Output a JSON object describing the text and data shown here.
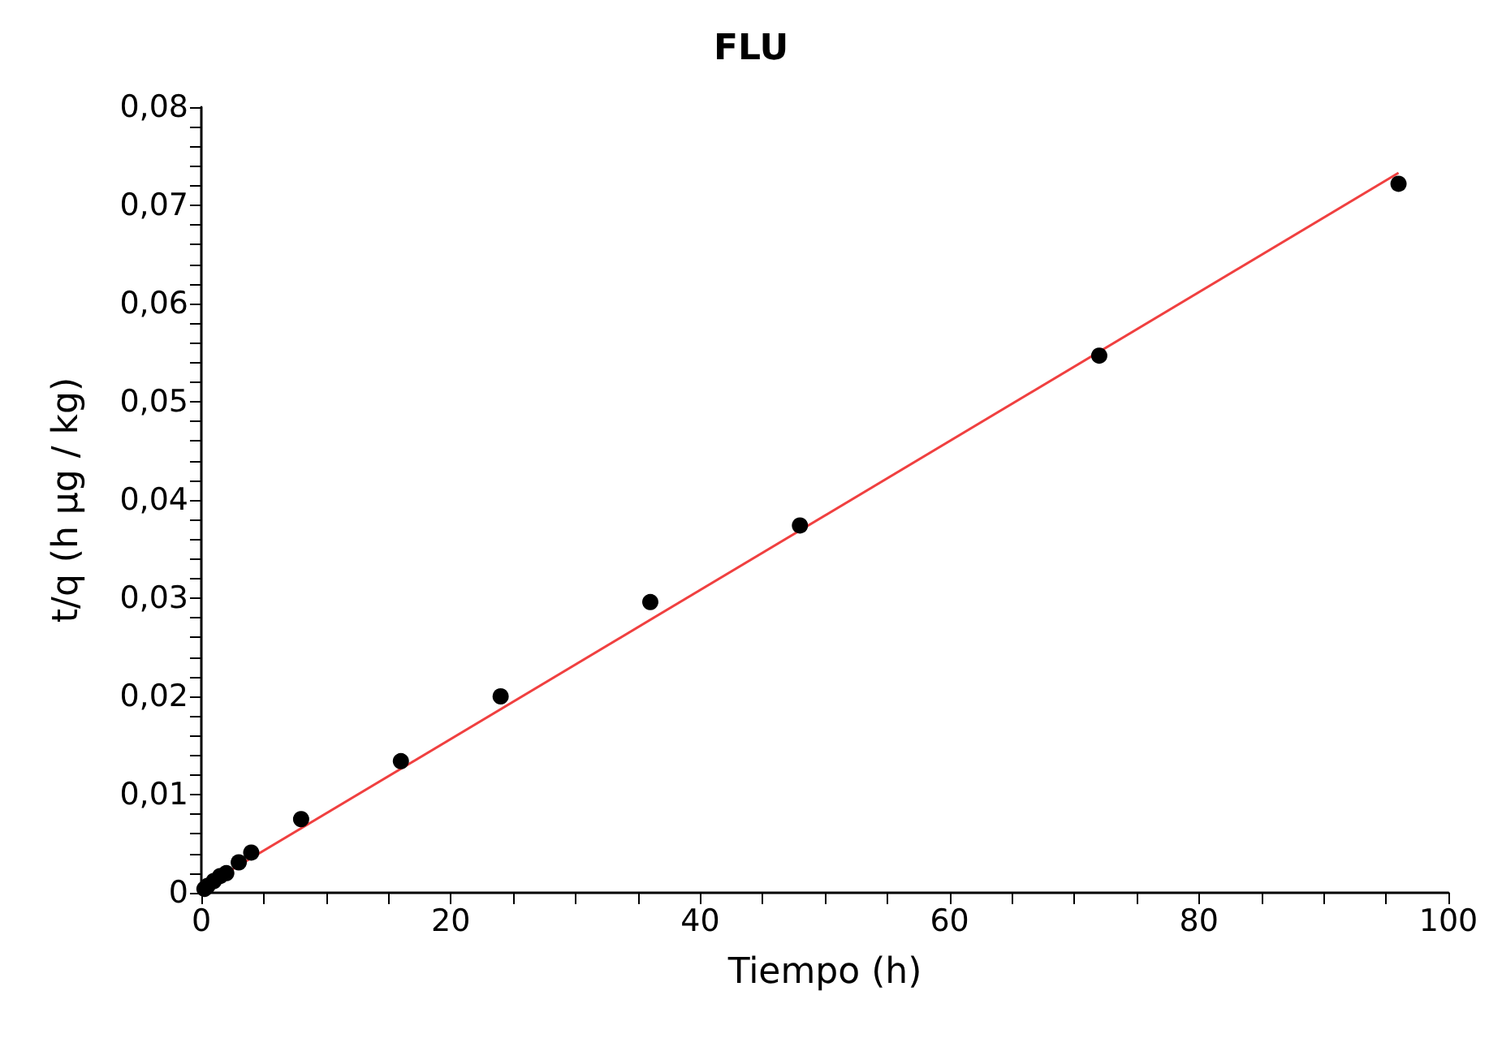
{
  "chart_data": {
    "type": "scatter",
    "title": "FLU",
    "xlabel": "Tiempo (h)",
    "ylabel": "t/q (h µg / kg)",
    "xlim": [
      0,
      100
    ],
    "ylim": [
      0,
      0.08
    ],
    "xticks": [
      0,
      {
        "value": 5,
        "label": null
      },
      {
        "value": 10,
        "label": null
      },
      {
        "value": 15,
        "label": null
      },
      20,
      {
        "value": 25,
        "label": null
      },
      {
        "value": 30,
        "label": null
      },
      {
        "value": 35,
        "label": null
      },
      40,
      {
        "value": 45,
        "label": null
      },
      {
        "value": 50,
        "label": null
      },
      {
        "value": 55,
        "label": null
      },
      60,
      {
        "value": 65,
        "label": null
      },
      {
        "value": 70,
        "label": null
      },
      {
        "value": 75,
        "label": null
      },
      80,
      {
        "value": 85,
        "label": null
      },
      {
        "value": 90,
        "label": null
      },
      {
        "value": 95,
        "label": null
      },
      100
    ],
    "yticks": [
      0,
      {
        "value": 0.002,
        "label": null
      },
      {
        "value": 0.004,
        "label": null
      },
      {
        "value": 0.006,
        "label": null
      },
      {
        "value": 0.008,
        "label": null
      },
      {
        "value": 0.01,
        "label": "0,01"
      },
      {
        "value": 0.012,
        "label": null
      },
      {
        "value": 0.014,
        "label": null
      },
      {
        "value": 0.016,
        "label": null
      },
      {
        "value": 0.018,
        "label": null
      },
      {
        "value": 0.02,
        "label": "0,02"
      },
      {
        "value": 0.022,
        "label": null
      },
      {
        "value": 0.024,
        "label": null
      },
      {
        "value": 0.026,
        "label": null
      },
      {
        "value": 0.028,
        "label": null
      },
      {
        "value": 0.03,
        "label": "0,03"
      },
      {
        "value": 0.032,
        "label": null
      },
      {
        "value": 0.034,
        "label": null
      },
      {
        "value": 0.036,
        "label": null
      },
      {
        "value": 0.038,
        "label": null
      },
      {
        "value": 0.04,
        "label": "0,04"
      },
      {
        "value": 0.042,
        "label": null
      },
      {
        "value": 0.044,
        "label": null
      },
      {
        "value": 0.046,
        "label": null
      },
      {
        "value": 0.048,
        "label": null
      },
      {
        "value": 0.05,
        "label": "0,05"
      },
      {
        "value": 0.052,
        "label": null
      },
      {
        "value": 0.054,
        "label": null
      },
      {
        "value": 0.056,
        "label": null
      },
      {
        "value": 0.058,
        "label": null
      },
      {
        "value": 0.06,
        "label": "0,06"
      },
      {
        "value": 0.062,
        "label": null
      },
      {
        "value": 0.064,
        "label": null
      },
      {
        "value": 0.066,
        "label": null
      },
      {
        "value": 0.068,
        "label": null
      },
      {
        "value": 0.07,
        "label": "0,07"
      },
      {
        "value": 0.072,
        "label": null
      },
      {
        "value": 0.074,
        "label": null
      },
      {
        "value": 0.076,
        "label": null
      },
      {
        "value": 0.078,
        "label": null
      },
      {
        "value": 0.08,
        "label": "0,08"
      }
    ],
    "grid": false,
    "marker": "circle",
    "series": [
      {
        "color": "#000000",
        "x": [
          0.25,
          0.5,
          1,
          1.5,
          2,
          3,
          4,
          8,
          16,
          24,
          36,
          48,
          72,
          96
        ],
        "values": [
          0.0004,
          0.0007,
          0.0012,
          0.0017,
          0.002,
          0.0031,
          0.0041,
          0.0075,
          0.0134,
          0.02,
          0.0296,
          0.0374,
          0.0547,
          0.0722
        ]
      },
      {
        "type": "line",
        "color": "#f04040",
        "x": [
          0,
          96
        ],
        "values": [
          0.0005,
          0.0733
        ],
        "marker": "none",
        "line_style": "solid"
      }
    ]
  }
}
